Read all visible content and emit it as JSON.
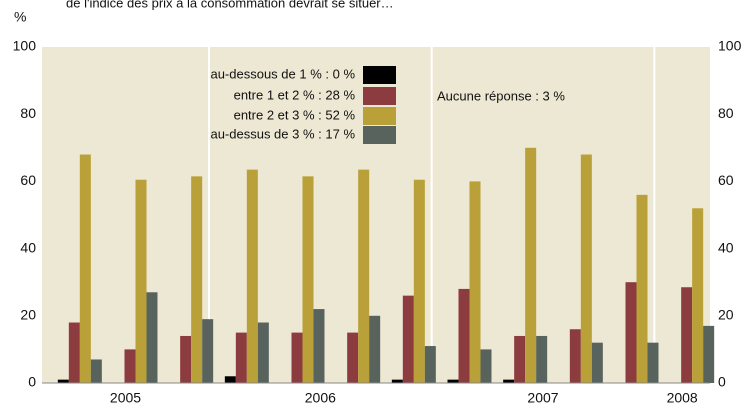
{
  "chart_data": {
    "type": "bar",
    "subtitle": "de l'indice des prix à la consommation devrait se situer…",
    "y_unit": "%",
    "annotation": "Aucune réponse : 3 %",
    "categories": [
      null,
      null,
      null,
      null,
      null,
      null,
      null,
      null,
      null,
      null,
      null,
      null
    ],
    "year_groups": [
      {
        "label": "2005",
        "quarters": 3
      },
      {
        "label": "2006",
        "quarters": 4
      },
      {
        "label": "2007",
        "quarters": 4
      },
      {
        "label": "2008",
        "quarters": 1
      }
    ],
    "series": [
      {
        "name": "au-dessous de 1 % :   0 %",
        "color": "#000000",
        "values": [
          1,
          0,
          0,
          2,
          0,
          0,
          1,
          1,
          1,
          0,
          0,
          0
        ]
      },
      {
        "name": "entre 1 et 2 % : 28 %",
        "color": "#8c3b3e",
        "values": [
          18,
          10,
          14,
          15,
          15,
          15,
          26,
          28,
          14,
          16,
          30,
          28.5
        ]
      },
      {
        "name": "entre 2 et 3 % : 52 %",
        "color": "#b9a038",
        "values": [
          68,
          60.5,
          61.5,
          63.5,
          61.5,
          63.5,
          60.5,
          60,
          70,
          68,
          56,
          52
        ]
      },
      {
        "name": "au-dessus de 3 % : 17 %",
        "color": "#59635e",
        "values": [
          7,
          27,
          19,
          18,
          22,
          20,
          11,
          10,
          14,
          12,
          12,
          17
        ]
      }
    ],
    "ylim": [
      0,
      100
    ],
    "yticks": [
      0,
      20,
      40,
      60,
      80,
      100
    ],
    "grid": false,
    "background": "#ede8d3"
  }
}
